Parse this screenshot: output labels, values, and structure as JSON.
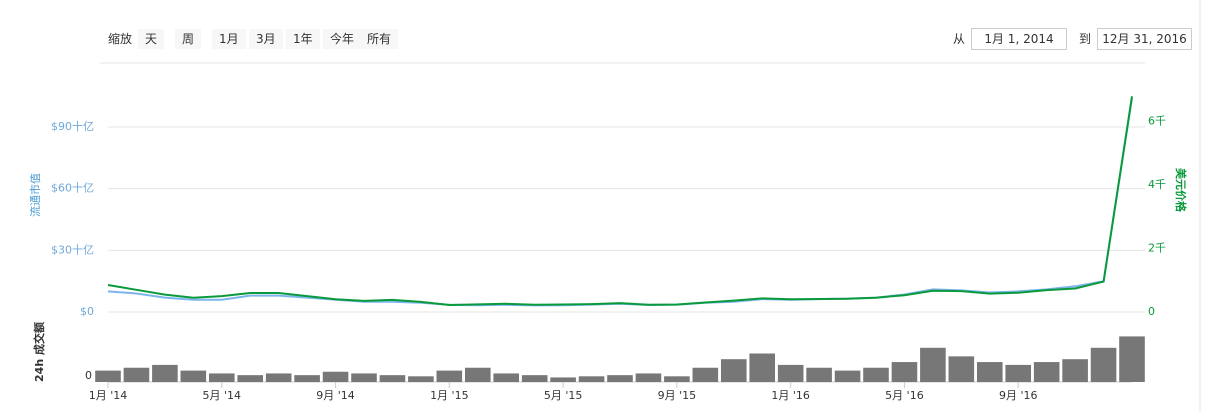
{
  "controls": {
    "zoom_label": "缩放",
    "buttons": [
      "天",
      "周",
      "1月",
      "3月",
      "1年",
      "今年",
      "所有"
    ],
    "from_label": "从",
    "from": "1月 1, 2014",
    "to_label": "到",
    "to": "12月 31, 2016"
  },
  "chart_data": [
    {
      "type": "line",
      "ylabel": "流通市值",
      "y2label": "美元价格",
      "categories": [
        "1月 '14",
        null,
        null,
        null,
        "5月 '14",
        null,
        null,
        null,
        "9月 '14",
        null,
        null,
        null,
        "1月 '15",
        null,
        null,
        null,
        "5月 '15",
        null,
        null,
        null,
        "9月 '15",
        null,
        null,
        null,
        "1月 '16",
        null,
        null,
        null,
        "5月 '16",
        null,
        null,
        null,
        "9月 '16",
        null,
        null,
        null,
        null
      ],
      "ylim": [
        0,
        108
      ],
      "yticks": [
        {
          "value": 0,
          "label": "$0"
        },
        {
          "value": 30,
          "label": "$30十亿"
        },
        {
          "value": 60,
          "label": "$60十亿"
        },
        {
          "value": 90,
          "label": "$90十亿"
        }
      ],
      "y2lim": [
        0,
        7000
      ],
      "y2ticks": [
        0,
        {
          "value": 2000,
          "label": "2千"
        },
        {
          "value": 4000,
          "label": "4千"
        },
        {
          "value": 6000,
          "label": "6千"
        }
      ],
      "grid": true,
      "series": [
        {
          "name": "流通市值",
          "color": "#7cb5ec",
          "values": [
            10,
            9,
            7,
            6,
            6,
            8,
            8,
            7,
            6,
            5,
            5,
            4.5,
            3.5,
            3.3,
            3.5,
            3.2,
            3.3,
            3.6,
            4,
            3.4,
            3.5,
            4.5,
            5,
            6.3,
            6,
            6.3,
            6.5,
            7,
            8.5,
            11,
            10.5,
            9.5,
            10,
            11,
            12.5,
            15,
            104
          ]
        },
        {
          "name": "美元价格",
          "color": "#0a9a3c",
          "axis": "y2",
          "values": [
            850,
            700,
            550,
            450,
            500,
            600,
            600,
            500,
            400,
            350,
            380,
            320,
            220,
            240,
            260,
            230,
            235,
            250,
            280,
            230,
            235,
            300,
            360,
            430,
            400,
            410,
            415,
            450,
            530,
            670,
            660,
            580,
            610,
            690,
            740,
            960,
            6800
          ]
        }
      ]
    },
    {
      "type": "bar",
      "ylabel": "24h 成交额",
      "color": "#777777",
      "ylim": [
        0,
        100
      ],
      "yticks": [
        0
      ],
      "values": [
        20,
        25,
        30,
        20,
        15,
        12,
        15,
        12,
        18,
        15,
        12,
        10,
        20,
        25,
        15,
        12,
        8,
        10,
        12,
        15,
        10,
        25,
        40,
        50,
        30,
        25,
        20,
        25,
        35,
        60,
        45,
        35,
        30,
        35,
        40,
        60,
        80
      ]
    }
  ]
}
